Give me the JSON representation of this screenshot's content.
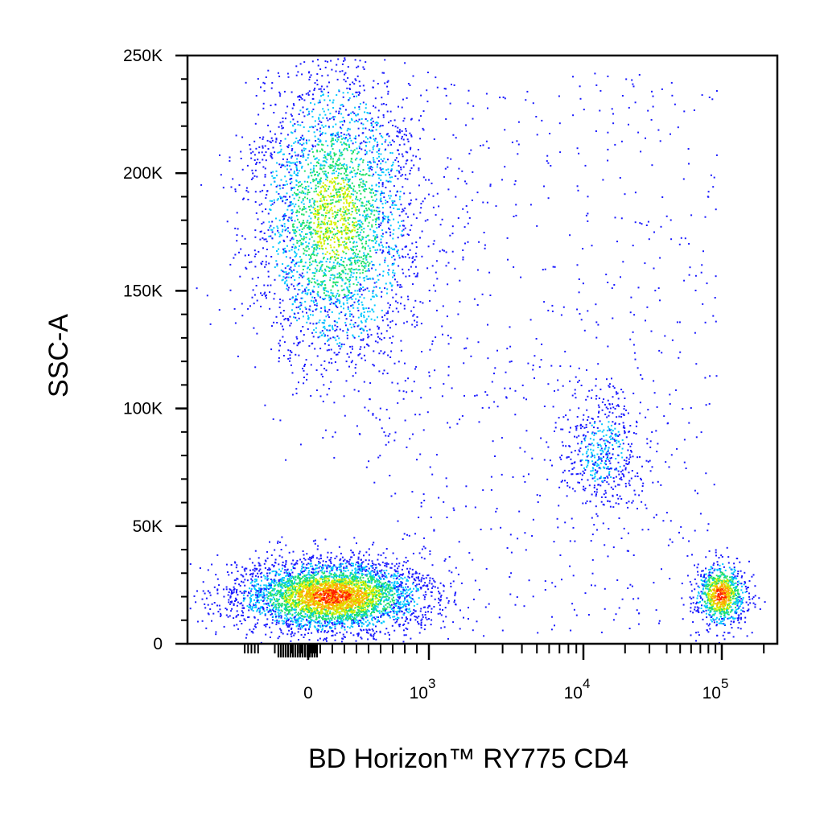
{
  "chart_data": {
    "type": "scatter",
    "subtype": "flow-cytometry-density-dot-plot",
    "xlabel": "BD Horizon™ RY775 CD4",
    "ylabel": "SSC-A",
    "x_scale": "biexponential",
    "y_scale": "linear",
    "ylim": [
      0,
      250000
    ],
    "y_ticks": [
      {
        "value": 0,
        "label": "0"
      },
      {
        "value": 50000,
        "label": "50K"
      },
      {
        "value": 100000,
        "label": "100K"
      },
      {
        "value": 150000,
        "label": "150K"
      },
      {
        "value": 200000,
        "label": "200K"
      },
      {
        "value": 250000,
        "label": "250K"
      }
    ],
    "x_ticks": [
      {
        "value": 0,
        "base": "0",
        "exp": ""
      },
      {
        "value": 1000,
        "base": "10",
        "exp": "3"
      },
      {
        "value": 10000,
        "base": "10",
        "exp": "4"
      },
      {
        "value": 100000,
        "base": "10",
        "exp": "5"
      }
    ],
    "colormap": [
      "#1a1aff",
      "#00c8ff",
      "#21e06a",
      "#d8f000",
      "#ffa500",
      "#ff2000"
    ],
    "populations": [
      {
        "name": "low-SSC CD4-negative cluster",
        "x_center": 150,
        "y_center": 20000,
        "density": "highest"
      },
      {
        "name": "high-SSC CD4-negative cluster",
        "x_center": 200,
        "y_center": 180000,
        "density": "medium"
      },
      {
        "name": "CD4-intermediate cluster",
        "x_center": 15000,
        "y_center": 80000,
        "density": "low"
      },
      {
        "name": "CD4-positive cluster",
        "x_center": 95000,
        "y_center": 22000,
        "density": "high"
      }
    ],
    "grid": false,
    "legend": "none"
  }
}
